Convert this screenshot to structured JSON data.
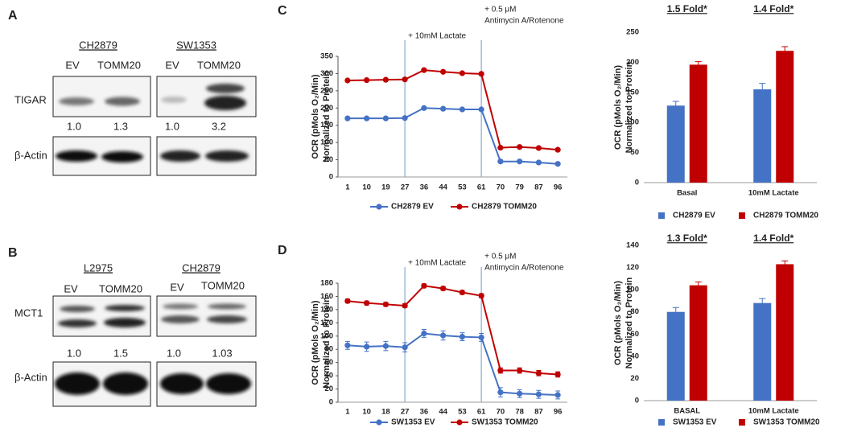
{
  "panel_labels": [
    "C",
    "D"
  ],
  "blots": [
    {
      "label": "A",
      "protein": "TIGAR",
      "loading_control": "β-Actin",
      "groups": [
        {
          "cell_line": "CH2879",
          "lanes": [
            "EV",
            "TOMM20"
          ],
          "ratios": [
            "1.0",
            "1.3"
          ]
        },
        {
          "cell_line": "SW1353",
          "lanes": [
            "EV",
            "TOMM20"
          ],
          "ratios": [
            "1.0",
            "3.2"
          ]
        }
      ]
    },
    {
      "label": "B",
      "protein": "MCT1",
      "loading_control": "β-Actin",
      "groups": [
        {
          "cell_line": "L2975",
          "lanes": [
            "EV",
            "TOMM20"
          ],
          "ratios": [
            "1.0",
            "1.5"
          ]
        },
        {
          "cell_line": "CH2879",
          "lanes": [
            "EV",
            "TOMM20"
          ],
          "ratios": [
            "1.0",
            "1.03"
          ]
        }
      ]
    }
  ],
  "chart_data": [
    {
      "type": "line",
      "ylabel": [
        "OCR (pMols O₂/Min)",
        "Normalized to Protein"
      ],
      "categories": [
        1,
        10,
        19,
        27,
        36,
        44,
        53,
        61,
        70,
        79,
        87,
        96
      ],
      "ylim": [
        0,
        350
      ],
      "yticks": [
        0,
        50,
        100,
        150,
        200,
        250,
        300,
        350
      ],
      "grid": false,
      "annotations": [
        {
          "at": 27,
          "label": [
            "+ 10mM Lactate"
          ]
        },
        {
          "at": 61,
          "label": [
            "+ 0.5 μM",
            "Antimycin A/Rotenone"
          ]
        }
      ],
      "series": [
        {
          "name": "CH2879 EV",
          "color": "#4472c4",
          "values": [
            170,
            170,
            170,
            171,
            200,
            198,
            196,
            196,
            45,
            45,
            42,
            38
          ]
        },
        {
          "name": "CH2879 TOMM20",
          "color": "#c00000",
          "values": [
            280,
            281,
            282,
            283,
            310,
            305,
            301,
            299,
            85,
            87,
            84,
            79
          ]
        }
      ]
    },
    {
      "type": "bar",
      "ylabel": [
        "OCR (pMols O₂/Min)",
        "Normalized to Protein"
      ],
      "group_titles": [
        "1.5 Fold*",
        "1.4 Fold*"
      ],
      "categories": [
        "Basal",
        "10mM Lactate"
      ],
      "ylim": [
        0,
        250
      ],
      "yticks": [
        0,
        50,
        100,
        150,
        200,
        250
      ],
      "grid": false,
      "series": [
        {
          "name": "CH2879 EV",
          "color": "#4472c4",
          "values": [
            128,
            155
          ],
          "errors": [
            7,
            10
          ]
        },
        {
          "name": "CH2879 TOMM20",
          "color": "#c00000",
          "values": [
            196,
            219
          ],
          "errors": [
            5,
            7
          ]
        }
      ]
    },
    {
      "type": "line",
      "ylabel": [
        "OCR (pMols O₂/Min)",
        "Normalized to Protein"
      ],
      "categories": [
        1,
        10,
        18,
        27,
        36,
        44,
        53,
        61,
        70,
        78,
        87,
        96
      ],
      "ylim": [
        0,
        180
      ],
      "yticks": [
        0,
        20,
        40,
        60,
        80,
        100,
        120,
        140,
        160,
        180
      ],
      "grid": false,
      "annotations": [
        {
          "at": 27,
          "label": [
            "+ 10mM Lactate"
          ]
        },
        {
          "at": 61,
          "label": [
            "+ 0.5 μM",
            "Antimycin A/Rotenone"
          ]
        }
      ],
      "series": [
        {
          "name": "SW1353 EV",
          "color": "#4472c4",
          "values": [
            86,
            84,
            85,
            83,
            104,
            101,
            99,
            98,
            15,
            13,
            12,
            11
          ],
          "errors": [
            6,
            7,
            7,
            7,
            6,
            7,
            6,
            6,
            7,
            6,
            6,
            6
          ]
        },
        {
          "name": "SW1353 TOMM20",
          "color": "#c00000",
          "values": [
            153,
            150,
            148,
            146,
            176,
            172,
            166,
            161,
            48,
            48,
            44,
            42
          ],
          "errors": [
            3,
            3,
            3,
            3,
            3,
            3,
            3,
            3,
            4,
            4,
            4,
            4
          ]
        }
      ]
    },
    {
      "type": "bar",
      "ylabel": [
        "OCR (pMols O₂/Min)",
        "Normalized to Protein"
      ],
      "group_titles": [
        "1.3 Fold*",
        "1.4 Fold*"
      ],
      "categories": [
        "BASAL",
        "10mM Lactate"
      ],
      "ylim": [
        0,
        140
      ],
      "yticks": [
        0,
        20,
        40,
        60,
        80,
        100,
        120,
        140
      ],
      "grid": false,
      "series": [
        {
          "name": "SW1353 EV",
          "color": "#4472c4",
          "values": [
            80,
            88
          ],
          "errors": [
            4,
            4
          ]
        },
        {
          "name": "SW1353 TOMM20",
          "color": "#c00000",
          "values": [
            104,
            123
          ],
          "errors": [
            3,
            3
          ]
        }
      ]
    }
  ]
}
